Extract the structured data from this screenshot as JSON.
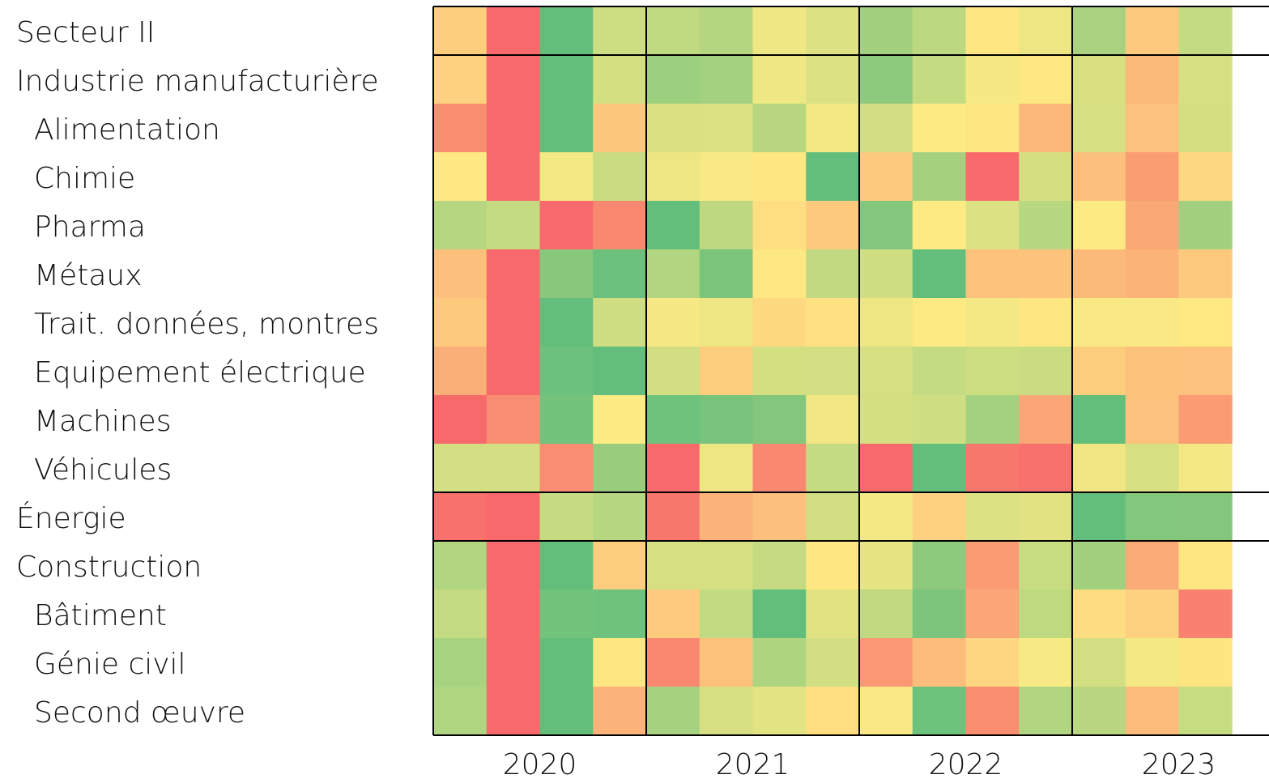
{
  "chart_data": {
    "type": "heatmap",
    "rows": [
      "Secteur II",
      "Industrie manufacturière",
      "Alimentation",
      "Chimie",
      "Pharma",
      "Métaux",
      "Trait. données, montres",
      "Equipement électrique",
      "Machines",
      "Véhicules",
      "Énergie",
      "Construction",
      "Bâtiment",
      "Génie civil",
      "Second œuvre"
    ],
    "row_levels": [
      0,
      0,
      1,
      1,
      1,
      1,
      1,
      1,
      1,
      1,
      0,
      0,
      1,
      1,
      1
    ],
    "x_groups": [
      "2020",
      "2021",
      "2022",
      "2023"
    ],
    "colors": [
      [
        "#FDCD7E",
        "#F8696B",
        "#63BE7B",
        "#CDDD82",
        "#BFD981",
        "#B5D680",
        "#EEE784",
        "#DDE283",
        "#A2D07F",
        "#BCD881",
        "#FEE683",
        "#EDE683",
        "#A8D27F",
        "#FDCA7D",
        "#C5DB81"
      ],
      [
        "#FDD17F",
        "#F8696B",
        "#63BE7B",
        "#D4DF82",
        "#9CCF7E",
        "#A3D17F",
        "#EFE784",
        "#DBE283",
        "#8ECA7E",
        "#C4DB81",
        "#F6E984",
        "#FEE883",
        "#D8E082",
        "#FBBA7A",
        "#D6E082"
      ],
      [
        "#F98F71",
        "#F8696B",
        "#63BE7B",
        "#FDC77D",
        "#DAE182",
        "#DCE283",
        "#B8D780",
        "#F3E884",
        "#D2DE82",
        "#FEEA83",
        "#FEE783",
        "#FBB87A",
        "#D6E082",
        "#FCC17C",
        "#D5DF82"
      ],
      [
        "#FFE984",
        "#F8696B",
        "#F2E884",
        "#C9DC81",
        "#EEE683",
        "#F8E984",
        "#FEE783",
        "#63BE7B",
        "#FDCA7D",
        "#A5D17F",
        "#F8696B",
        "#D5DF82",
        "#FCC07C",
        "#FA9D73",
        "#FED880"
      ],
      [
        "#B6D680",
        "#C4DB81",
        "#F8696B",
        "#F98870",
        "#63BE7B",
        "#BED881",
        "#FEDE81",
        "#FDC97D",
        "#84C77C",
        "#FEEA83",
        "#DCE283",
        "#B7D780",
        "#FEEA83",
        "#FAA876",
        "#A2D07F"
      ],
      [
        "#FCC07C",
        "#F8696B",
        "#87C87D",
        "#6BC17C",
        "#B1D580",
        "#7AC47C",
        "#FEE883",
        "#C1D981",
        "#D0DE82",
        "#63BE7B",
        "#FCC27C",
        "#FCC37C",
        "#FBB97A",
        "#FBB378",
        "#FDCA7D"
      ],
      [
        "#FDCA7D",
        "#F8696B",
        "#63BE7B",
        "#CFDE82",
        "#F6E984",
        "#EEE683",
        "#FED980",
        "#FEE282",
        "#EEE683",
        "#FEEA83",
        "#F4E884",
        "#FEE683",
        "#F8E984",
        "#F8E984",
        "#FEE983"
      ],
      [
        "#FBAF78",
        "#F8696B",
        "#6CC17C",
        "#63BE7B",
        "#D2DE82",
        "#FDCD7E",
        "#D4DF82",
        "#D3DF82",
        "#D6E082",
        "#C4DB81",
        "#CDDD82",
        "#CADC81",
        "#FDCD7E",
        "#FCC27C",
        "#FCC17C"
      ],
      [
        "#F8696B",
        "#F98D71",
        "#73C37C",
        "#FFEB84",
        "#6EC27C",
        "#78C47C",
        "#84C77C",
        "#F1E784",
        "#D4DF82",
        "#D0DE82",
        "#A4D17F",
        "#FAA676",
        "#63BE7B",
        "#FCC17C",
        "#FA9B73"
      ],
      [
        "#D3DF82",
        "#D3DF82",
        "#F98D71",
        "#98CD7E",
        "#F8696B",
        "#EEE683",
        "#F98870",
        "#C5DB81",
        "#F8696B",
        "#63BE7B",
        "#F8776D",
        "#F8716C",
        "#F0E784",
        "#D6E082",
        "#F4E884"
      ],
      [
        "#F8716C",
        "#F8696B",
        "#C6DB81",
        "#B7D780",
        "#F8776D",
        "#FBB379",
        "#FCC07C",
        "#D2DE82",
        "#F4E884",
        "#FDD17F",
        "#DCE283",
        "#E1E383",
        "#63BE7B",
        "#83C77C",
        "#84C77C"
      ],
      [
        "#B1D580",
        "#F8696B",
        "#63BE7B",
        "#FDCD7E",
        "#D6E082",
        "#D6E082",
        "#C6DB81",
        "#FEE683",
        "#E6E483",
        "#8ECA7E",
        "#FA9B73",
        "#C7DC81",
        "#A1D07F",
        "#FAAB77",
        "#FEE683"
      ],
      [
        "#C4DB81",
        "#F8696B",
        "#72C37C",
        "#6FC27C",
        "#FDCB7E",
        "#C2DA81",
        "#63BE7B",
        "#E1E383",
        "#C0D981",
        "#7DC57C",
        "#FAA676",
        "#BFD981",
        "#FEDC81",
        "#FDD17F",
        "#F98170"
      ],
      [
        "#A7D27F",
        "#F8696B",
        "#63BE7B",
        "#FEE683",
        "#F98870",
        "#FCC27C",
        "#AFD480",
        "#D2DE82",
        "#FA9873",
        "#FCBC7B",
        "#FED580",
        "#F7E984",
        "#D3DF82",
        "#F3E884",
        "#FEE582"
      ],
      [
        "#B0D580",
        "#F8696B",
        "#63BE7B",
        "#FBB379",
        "#A6D27F",
        "#D6E082",
        "#E4E383",
        "#FEDE81",
        "#F8E984",
        "#6DC27C",
        "#F98E71",
        "#B1D580",
        "#B9D780",
        "#FBBB7A",
        "#C7DC81"
      ]
    ],
    "row_separators_after": [
      0,
      9,
      10
    ]
  }
}
